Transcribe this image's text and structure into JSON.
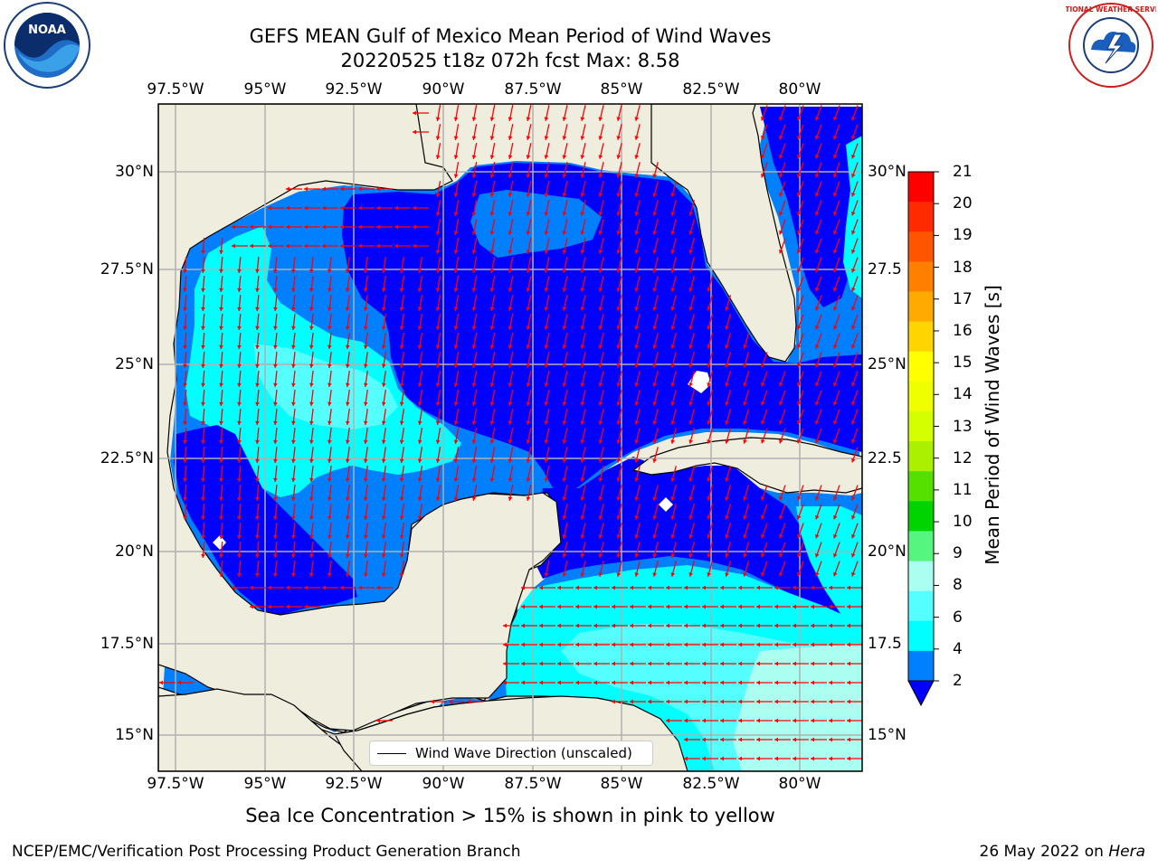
{
  "title": "GEFS MEAN Gulf of Mexico Mean Period of Wind Waves",
  "subtitle_line": "20220525 t18z 072h fcst   Max: 8.58",
  "lon_ticks": [
    "97.5°W",
    "95°W",
    "92.5°W",
    "90°W",
    "87.5°W",
    "85°W",
    "82.5°W",
    "80°W"
  ],
  "lat_ticks": [
    "30°N",
    "27.5°N",
    "25°N",
    "22.5°N",
    "20°N",
    "17.5°N",
    "15°N"
  ],
  "lat_ticks_right": [
    "30°N",
    "27.5",
    "25°N",
    "22.5",
    "20°N",
    "17.5",
    "15°N"
  ],
  "colorbar": {
    "label": "Mean Period of Wind Waves [s]",
    "ticks": [
      "21",
      "20",
      "19",
      "18",
      "17",
      "16",
      "15",
      "14",
      "13",
      "12",
      "11",
      "10",
      "9",
      "8",
      "6",
      "4",
      "2"
    ],
    "colors": [
      "#ff0000",
      "#ff2a00",
      "#ff5500",
      "#ff7f00",
      "#ffaa00",
      "#ffd400",
      "#ffff00",
      "#f0ff00",
      "#d4ff00",
      "#aaf000",
      "#55e000",
      "#00d400",
      "#55f580",
      "#aafff0",
      "#55ffff",
      "#00ffff",
      "#0080ff"
    ],
    "extend_color": "#0000ff"
  },
  "legend": "Wind Wave Direction (unscaled)",
  "bottom_caption": "Sea Ice Concentration > 15% is shown in pink to yellow",
  "footer_left": "NCEP/EMC/Verification Post Processing Product Generation Branch",
  "footer_date": "26 May 2022 on ",
  "footer_host": "Hera",
  "colors": {
    "land": "#efedde",
    "coast": "#000000",
    "grid": "#b0b0b0",
    "arrow": "#ff0000"
  },
  "logos": {
    "left": "NOAA",
    "right": "NATIONAL WEATHER SERVICE"
  }
}
